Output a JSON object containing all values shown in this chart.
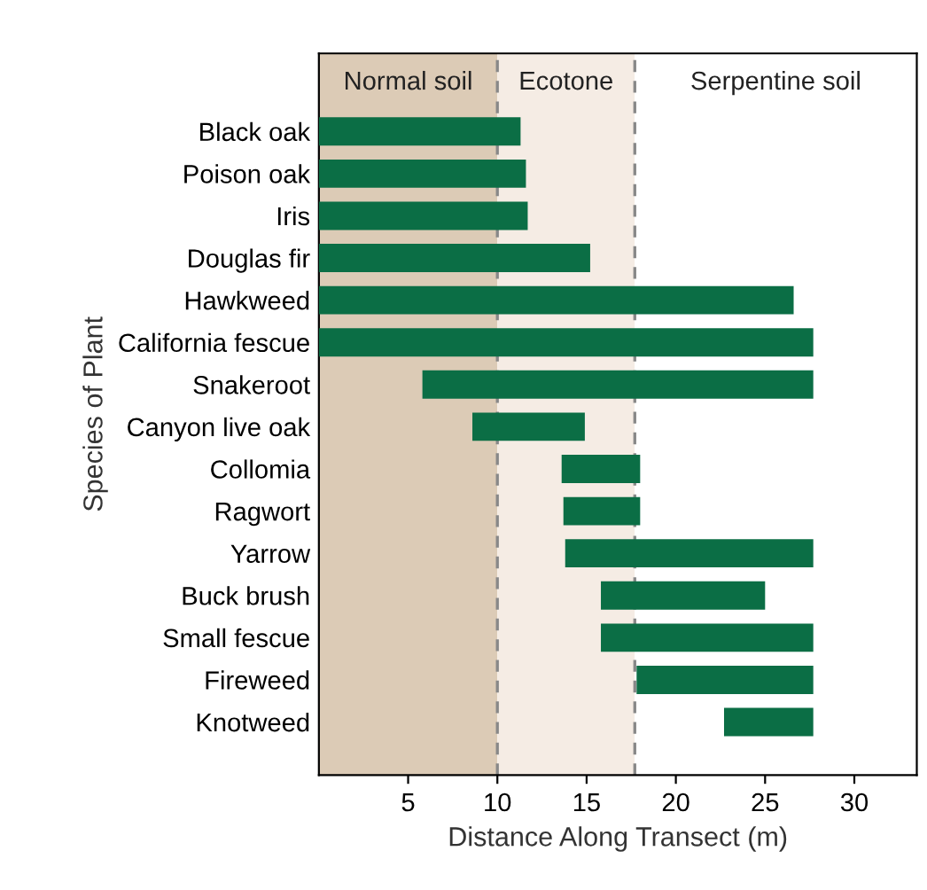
{
  "chart_data": {
    "type": "bar",
    "orientation": "horizontal",
    "xlabel": "Distance Along Transect (m)",
    "ylabel": "Species of Plant",
    "categories": [
      "Black oak",
      "Poison oak",
      "Iris",
      "Douglas fir",
      "Hawkweed",
      "California fescue",
      "Snakeroot",
      "Canyon live oak",
      "Collomia",
      "Ragwort",
      "Yarrow",
      "Buck brush",
      "Small fescue",
      "Fireweed",
      "Knotweed"
    ],
    "base": [
      0,
      0,
      0,
      0,
      0,
      0,
      5.8,
      8.6,
      13.6,
      13.7,
      13.8,
      15.8,
      15.8,
      17.8,
      22.7
    ],
    "values": [
      11.3,
      11.6,
      11.7,
      15.2,
      26.6,
      27.7,
      21.9,
      6.3,
      4.4,
      4.3,
      13.9,
      9.2,
      11.9,
      9.9,
      5.0
    ],
    "color": "#0b6e45",
    "xlim": [
      0,
      33.5
    ],
    "xticks": [
      5,
      10,
      15,
      20,
      25,
      30
    ],
    "bands": [
      {
        "axis": "x",
        "from": 0,
        "to": 10,
        "label": "Normal soil",
        "color": "#dccbb6"
      },
      {
        "axis": "x",
        "from": 10,
        "to": 17.7,
        "label": "Ecotone",
        "color": "#f5ece4"
      },
      {
        "axis": "x",
        "from": 17.7,
        "to": 33.5,
        "label": "Serpentine soil",
        "color": "#ffffff"
      }
    ],
    "ref_lines": [
      {
        "axis": "x",
        "value": 10,
        "line_style": "dashed",
        "color": "#888888"
      },
      {
        "axis": "x",
        "value": 17.7,
        "line_style": "dashed",
        "color": "#888888"
      }
    ],
    "grid": false,
    "legend": false
  }
}
